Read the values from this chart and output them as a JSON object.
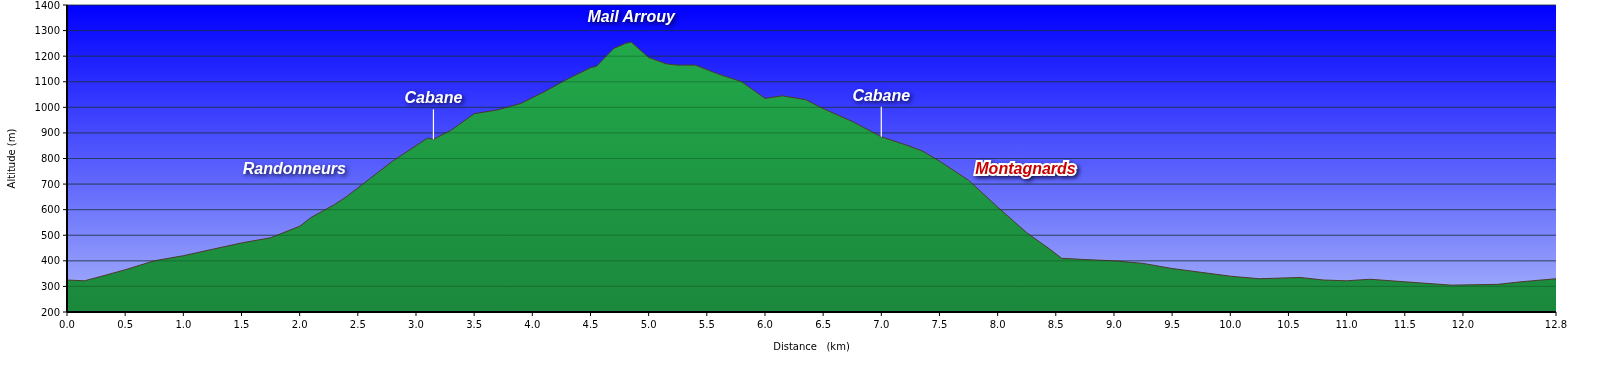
{
  "chart_data": {
    "type": "area",
    "xlabel": "Distance   (km)",
    "ylabel": "Altitude (m)",
    "xlim": [
      0,
      12.8
    ],
    "ylim": [
      200,
      1400
    ],
    "xticks": [
      {
        "value": 0,
        "label": "0.0"
      },
      0.5,
      {
        "value": 1,
        "label": "1.0"
      },
      1.5,
      {
        "value": 2,
        "label": "2.0"
      },
      2.5,
      {
        "value": 3,
        "label": "3.0"
      },
      3.5,
      {
        "value": 4,
        "label": "4.0"
      },
      4.5,
      {
        "value": 5,
        "label": "5.0"
      },
      5.5,
      {
        "value": 6,
        "label": "6.0"
      },
      6.5,
      {
        "value": 7,
        "label": "7.0"
      },
      7.5,
      {
        "value": 8,
        "label": "8.0"
      },
      8.5,
      {
        "value": 9,
        "label": "9.0"
      },
      9.5,
      {
        "value": 10,
        "label": "10.0"
      },
      10.5,
      {
        "value": 11,
        "label": "11.0"
      },
      11.5,
      {
        "value": 12,
        "label": "12.0"
      },
      12.8
    ],
    "yticks": [
      200,
      300,
      400,
      500,
      600,
      700,
      800,
      900,
      1000,
      1100,
      1200,
      1300,
      1400
    ],
    "grid": "y",
    "x": [
      0,
      0.15,
      0.3,
      0.5,
      0.75,
      1.0,
      1.25,
      1.5,
      1.75,
      2.0,
      2.1,
      2.3,
      2.4,
      2.6,
      2.8,
      3.0,
      3.1,
      3.15,
      3.3,
      3.5,
      3.7,
      3.9,
      4.1,
      4.3,
      4.5,
      4.55,
      4.7,
      4.8,
      4.85,
      5.0,
      5.15,
      5.25,
      5.4,
      5.6,
      5.8,
      6.0,
      6.15,
      6.35,
      6.5,
      6.75,
      7.0,
      7.2,
      7.35,
      7.5,
      7.75,
      8.0,
      8.25,
      8.45,
      8.55,
      8.75,
      9.0,
      9.25,
      9.5,
      9.75,
      10.0,
      10.25,
      10.6,
      10.8,
      11.0,
      11.2,
      11.5,
      11.9,
      12.3,
      12.5,
      12.8
    ],
    "series": [
      {
        "color": "#22a84a",
        "values": [
          325,
          322,
          340,
          365,
          400,
          420,
          445,
          470,
          490,
          535,
          570,
          620,
          650,
          720,
          790,
          850,
          880,
          875,
          910,
          975,
          990,
          1015,
          1060,
          1110,
          1155,
          1160,
          1230,
          1250,
          1255,
          1195,
          1170,
          1165,
          1165,
          1130,
          1100,
          1035,
          1045,
          1030,
          995,
          945,
          885,
          855,
          830,
          790,
          715,
          610,
          510,
          445,
          410,
          405,
          400,
          390,
          370,
          355,
          340,
          330,
          335,
          325,
          322,
          328,
          318,
          305,
          308,
          318,
          330
        ]
      }
    ],
    "annotations": [
      {
        "text": "Mail Arrouy",
        "x": 4.85,
        "y": 1255
      },
      {
        "text": "Cabane",
        "x": 3.15,
        "y": 875
      },
      {
        "text": "Cabane",
        "x": 7.0,
        "y": 885
      },
      "Randonneurs",
      "Montagnards"
    ]
  }
}
